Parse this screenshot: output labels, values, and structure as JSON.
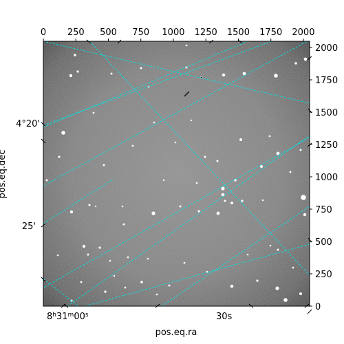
{
  "chart_data": {
    "type": "image",
    "colormap": "gray",
    "xlabel": "pos.eq.ra",
    "ylabel": "pos.eq.dec",
    "pixel_axes": {
      "x_ticks": [
        "0",
        "250",
        "500",
        "750",
        "1000",
        "1250",
        "1500",
        "1750",
        "2000"
      ],
      "x_values": [
        0,
        250,
        500,
        750,
        1000,
        1250,
        1500,
        1750,
        2000
      ],
      "y_ticks": [
        "0",
        "250",
        "500",
        "750",
        "1000",
        "1250",
        "1500",
        "1750",
        "2000"
      ],
      "y_values": [
        0,
        250,
        500,
        750,
        1000,
        1250,
        1500,
        1750,
        2000
      ],
      "xlim": [
        0,
        2048
      ],
      "ylim": [
        0,
        2048
      ]
    },
    "world_axes": {
      "ra_ticks": [
        {
          "h": "8",
          "m": "31",
          "s": "00",
          "label_suffix": "s"
        },
        {
          "label": "30s"
        }
      ],
      "dec_ticks": [
        "4°20'",
        "25'"
      ]
    },
    "grid": {
      "color": "#00e5e5",
      "style": "dashed",
      "visible": true
    }
  }
}
